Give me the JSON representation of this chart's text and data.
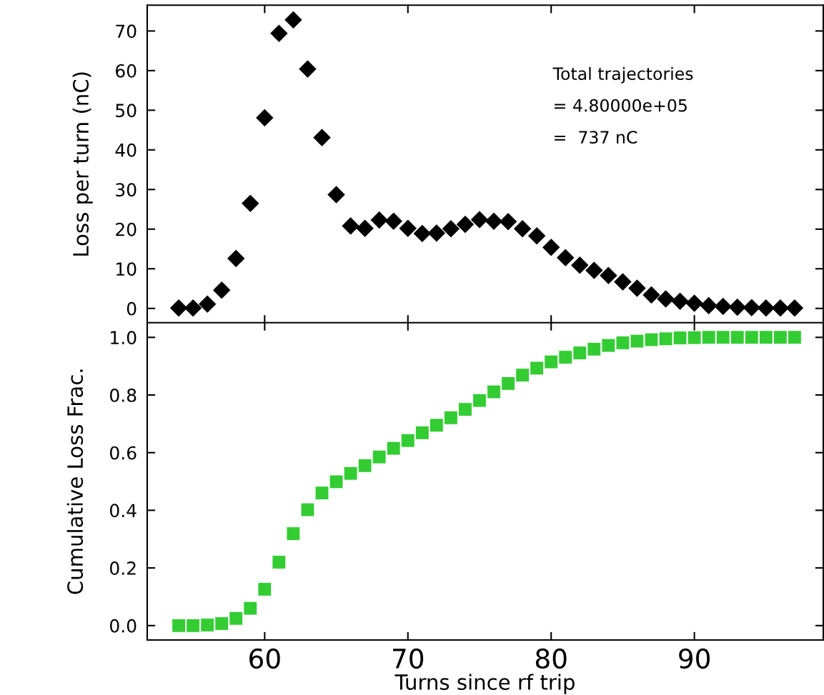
{
  "chart_data": [
    {
      "type": "scatter",
      "ylabel": "Loss per turn (nC)",
      "marker": "diamond",
      "grid": false,
      "tick_labels": "y",
      "x": [
        54,
        55,
        56,
        57,
        58,
        59,
        60,
        61,
        62,
        63,
        64,
        65,
        66,
        67,
        68,
        69,
        70,
        71,
        72,
        73,
        74,
        75,
        76,
        77,
        78,
        79,
        80,
        81,
        82,
        83,
        84,
        85,
        86,
        87,
        88,
        89,
        90,
        91,
        92,
        93,
        94,
        95,
        96,
        97
      ],
      "series": [
        {
          "color": "#000000",
          "values": [
            0.1,
            0.1,
            1.1,
            4.6,
            12.6,
            26.5,
            48.1,
            69.4,
            72.8,
            60.4,
            43.1,
            28.7,
            20.8,
            20.2,
            22.3,
            22.0,
            20.2,
            18.9,
            19.0,
            20.1,
            21.2,
            22.4,
            22.0,
            21.9,
            20.1,
            18.3,
            15.4,
            12.8,
            10.9,
            9.6,
            8.3,
            6.7,
            5.1,
            3.4,
            2.4,
            1.8,
            1.3,
            0.7,
            0.5,
            0.3,
            0.2,
            0.1,
            0.1,
            0.1
          ]
        }
      ],
      "xlim": [
        51.8,
        99
      ],
      "ylim": [
        -3.7,
        76.5
      ],
      "xticks": [
        60,
        70,
        80,
        90
      ],
      "yticks": [
        0,
        10,
        20,
        30,
        40,
        50,
        60,
        70
      ],
      "annotations": [
        "Total trajectories",
        "= 4.80000e+05",
        "=  737 nC"
      ]
    },
    {
      "type": "scatter",
      "xlabel": "Turns since rf trip",
      "ylabel": "Cumulative Loss Frac.",
      "marker": "square",
      "grid": false,
      "x": [
        54,
        55,
        56,
        57,
        58,
        59,
        60,
        61,
        62,
        63,
        64,
        65,
        66,
        67,
        68,
        69,
        70,
        71,
        72,
        73,
        74,
        75,
        76,
        77,
        78,
        79,
        80,
        81,
        82,
        83,
        84,
        85,
        86,
        87,
        88,
        89,
        90,
        91,
        92,
        93,
        94,
        95,
        96,
        97
      ],
      "series": [
        {
          "color": "#33cc33",
          "values": [
            0,
            0,
            0.002,
            0.007,
            0.025,
            0.06,
            0.126,
            0.22,
            0.319,
            0.402,
            0.46,
            0.499,
            0.528,
            0.555,
            0.585,
            0.615,
            0.642,
            0.669,
            0.695,
            0.721,
            0.75,
            0.781,
            0.811,
            0.84,
            0.869,
            0.893,
            0.915,
            0.931,
            0.946,
            0.959,
            0.972,
            0.981,
            0.987,
            0.992,
            0.995,
            0.998,
            0.999,
            1.0,
            1.0,
            1.0,
            1.0,
            1.0,
            1.0,
            1.0
          ]
        }
      ],
      "xlim": [
        51.8,
        99
      ],
      "ylim": [
        -0.05,
        1.051
      ],
      "xticks": [
        60,
        70,
        80,
        90
      ],
      "yticks": [
        {
          "value": 0,
          "label": "0.0"
        },
        {
          "value": 0.2,
          "label": "0.2"
        },
        {
          "value": 0.4,
          "label": "0.4"
        },
        {
          "value": 0.6,
          "label": "0.6"
        },
        {
          "value": 0.8,
          "label": "0.8"
        },
        {
          "value": 1.0,
          "label": "1.0"
        }
      ]
    }
  ]
}
